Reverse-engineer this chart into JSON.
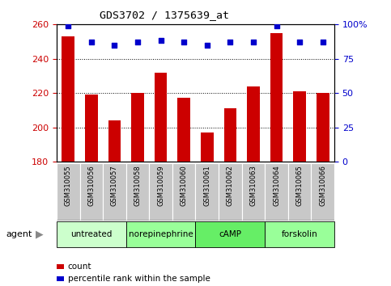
{
  "title": "GDS3702 / 1375639_at",
  "samples": [
    "GSM310055",
    "GSM310056",
    "GSM310057",
    "GSM310058",
    "GSM310059",
    "GSM310060",
    "GSM310061",
    "GSM310062",
    "GSM310063",
    "GSM310064",
    "GSM310065",
    "GSM310066"
  ],
  "counts": [
    253,
    219,
    204,
    220,
    232,
    217,
    197,
    211,
    224,
    255,
    221,
    220
  ],
  "percentile_ranks": [
    99,
    87,
    85,
    87,
    88,
    87,
    85,
    87,
    87,
    99,
    87,
    87
  ],
  "bar_color": "#cc0000",
  "dot_color": "#0000cc",
  "ymin": 180,
  "ymax": 260,
  "yticks": [
    180,
    200,
    220,
    240,
    260
  ],
  "y2min": 0,
  "y2max": 100,
  "y2ticks": [
    0,
    25,
    50,
    75,
    100
  ],
  "agents": [
    {
      "label": "untreated",
      "start": 0,
      "end": 3,
      "color": "#ccffcc"
    },
    {
      "label": "norepinephrine",
      "start": 3,
      "end": 6,
      "color": "#99ff99"
    },
    {
      "label": "cAMP",
      "start": 6,
      "end": 9,
      "color": "#66ee66"
    },
    {
      "label": "forskolin",
      "start": 9,
      "end": 12,
      "color": "#99ff99"
    }
  ],
  "xlabel_agent": "agent",
  "legend_count": "count",
  "legend_percentile": "percentile rank within the sample",
  "bar_color_legend": "#cc0000",
  "dot_color_legend": "#0000cc",
  "tick_label_color_left": "#cc0000",
  "tick_label_color_right": "#0000cc",
  "bar_width": 0.55
}
